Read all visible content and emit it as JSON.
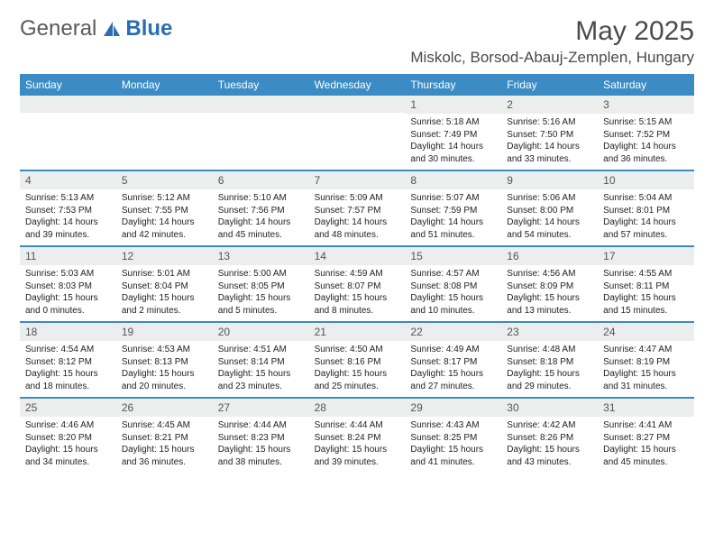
{
  "logo": {
    "text1": "General",
    "text2": "Blue"
  },
  "title": "May 2025",
  "location": "Miskolc, Borsod-Abauj-Zemplen, Hungary",
  "colors": {
    "header_bg": "#3b8bc4",
    "header_text": "#ffffff",
    "daynum_bg": "#eceded",
    "border": "#3b8bc4",
    "text": "#222222",
    "logo_gray": "#5a5a5a",
    "logo_blue": "#2a6db0"
  },
  "day_labels": [
    "Sunday",
    "Monday",
    "Tuesday",
    "Wednesday",
    "Thursday",
    "Friday",
    "Saturday"
  ],
  "weeks": [
    [
      {
        "n": "",
        "sr": "",
        "ss": "",
        "dl": ""
      },
      {
        "n": "",
        "sr": "",
        "ss": "",
        "dl": ""
      },
      {
        "n": "",
        "sr": "",
        "ss": "",
        "dl": ""
      },
      {
        "n": "",
        "sr": "",
        "ss": "",
        "dl": ""
      },
      {
        "n": "1",
        "sr": "Sunrise: 5:18 AM",
        "ss": "Sunset: 7:49 PM",
        "dl": "Daylight: 14 hours and 30 minutes."
      },
      {
        "n": "2",
        "sr": "Sunrise: 5:16 AM",
        "ss": "Sunset: 7:50 PM",
        "dl": "Daylight: 14 hours and 33 minutes."
      },
      {
        "n": "3",
        "sr": "Sunrise: 5:15 AM",
        "ss": "Sunset: 7:52 PM",
        "dl": "Daylight: 14 hours and 36 minutes."
      }
    ],
    [
      {
        "n": "4",
        "sr": "Sunrise: 5:13 AM",
        "ss": "Sunset: 7:53 PM",
        "dl": "Daylight: 14 hours and 39 minutes."
      },
      {
        "n": "5",
        "sr": "Sunrise: 5:12 AM",
        "ss": "Sunset: 7:55 PM",
        "dl": "Daylight: 14 hours and 42 minutes."
      },
      {
        "n": "6",
        "sr": "Sunrise: 5:10 AM",
        "ss": "Sunset: 7:56 PM",
        "dl": "Daylight: 14 hours and 45 minutes."
      },
      {
        "n": "7",
        "sr": "Sunrise: 5:09 AM",
        "ss": "Sunset: 7:57 PM",
        "dl": "Daylight: 14 hours and 48 minutes."
      },
      {
        "n": "8",
        "sr": "Sunrise: 5:07 AM",
        "ss": "Sunset: 7:59 PM",
        "dl": "Daylight: 14 hours and 51 minutes."
      },
      {
        "n": "9",
        "sr": "Sunrise: 5:06 AM",
        "ss": "Sunset: 8:00 PM",
        "dl": "Daylight: 14 hours and 54 minutes."
      },
      {
        "n": "10",
        "sr": "Sunrise: 5:04 AM",
        "ss": "Sunset: 8:01 PM",
        "dl": "Daylight: 14 hours and 57 minutes."
      }
    ],
    [
      {
        "n": "11",
        "sr": "Sunrise: 5:03 AM",
        "ss": "Sunset: 8:03 PM",
        "dl": "Daylight: 15 hours and 0 minutes."
      },
      {
        "n": "12",
        "sr": "Sunrise: 5:01 AM",
        "ss": "Sunset: 8:04 PM",
        "dl": "Daylight: 15 hours and 2 minutes."
      },
      {
        "n": "13",
        "sr": "Sunrise: 5:00 AM",
        "ss": "Sunset: 8:05 PM",
        "dl": "Daylight: 15 hours and 5 minutes."
      },
      {
        "n": "14",
        "sr": "Sunrise: 4:59 AM",
        "ss": "Sunset: 8:07 PM",
        "dl": "Daylight: 15 hours and 8 minutes."
      },
      {
        "n": "15",
        "sr": "Sunrise: 4:57 AM",
        "ss": "Sunset: 8:08 PM",
        "dl": "Daylight: 15 hours and 10 minutes."
      },
      {
        "n": "16",
        "sr": "Sunrise: 4:56 AM",
        "ss": "Sunset: 8:09 PM",
        "dl": "Daylight: 15 hours and 13 minutes."
      },
      {
        "n": "17",
        "sr": "Sunrise: 4:55 AM",
        "ss": "Sunset: 8:11 PM",
        "dl": "Daylight: 15 hours and 15 minutes."
      }
    ],
    [
      {
        "n": "18",
        "sr": "Sunrise: 4:54 AM",
        "ss": "Sunset: 8:12 PM",
        "dl": "Daylight: 15 hours and 18 minutes."
      },
      {
        "n": "19",
        "sr": "Sunrise: 4:53 AM",
        "ss": "Sunset: 8:13 PM",
        "dl": "Daylight: 15 hours and 20 minutes."
      },
      {
        "n": "20",
        "sr": "Sunrise: 4:51 AM",
        "ss": "Sunset: 8:14 PM",
        "dl": "Daylight: 15 hours and 23 minutes."
      },
      {
        "n": "21",
        "sr": "Sunrise: 4:50 AM",
        "ss": "Sunset: 8:16 PM",
        "dl": "Daylight: 15 hours and 25 minutes."
      },
      {
        "n": "22",
        "sr": "Sunrise: 4:49 AM",
        "ss": "Sunset: 8:17 PM",
        "dl": "Daylight: 15 hours and 27 minutes."
      },
      {
        "n": "23",
        "sr": "Sunrise: 4:48 AM",
        "ss": "Sunset: 8:18 PM",
        "dl": "Daylight: 15 hours and 29 minutes."
      },
      {
        "n": "24",
        "sr": "Sunrise: 4:47 AM",
        "ss": "Sunset: 8:19 PM",
        "dl": "Daylight: 15 hours and 31 minutes."
      }
    ],
    [
      {
        "n": "25",
        "sr": "Sunrise: 4:46 AM",
        "ss": "Sunset: 8:20 PM",
        "dl": "Daylight: 15 hours and 34 minutes."
      },
      {
        "n": "26",
        "sr": "Sunrise: 4:45 AM",
        "ss": "Sunset: 8:21 PM",
        "dl": "Daylight: 15 hours and 36 minutes."
      },
      {
        "n": "27",
        "sr": "Sunrise: 4:44 AM",
        "ss": "Sunset: 8:23 PM",
        "dl": "Daylight: 15 hours and 38 minutes."
      },
      {
        "n": "28",
        "sr": "Sunrise: 4:44 AM",
        "ss": "Sunset: 8:24 PM",
        "dl": "Daylight: 15 hours and 39 minutes."
      },
      {
        "n": "29",
        "sr": "Sunrise: 4:43 AM",
        "ss": "Sunset: 8:25 PM",
        "dl": "Daylight: 15 hours and 41 minutes."
      },
      {
        "n": "30",
        "sr": "Sunrise: 4:42 AM",
        "ss": "Sunset: 8:26 PM",
        "dl": "Daylight: 15 hours and 43 minutes."
      },
      {
        "n": "31",
        "sr": "Sunrise: 4:41 AM",
        "ss": "Sunset: 8:27 PM",
        "dl": "Daylight: 15 hours and 45 minutes."
      }
    ]
  ]
}
